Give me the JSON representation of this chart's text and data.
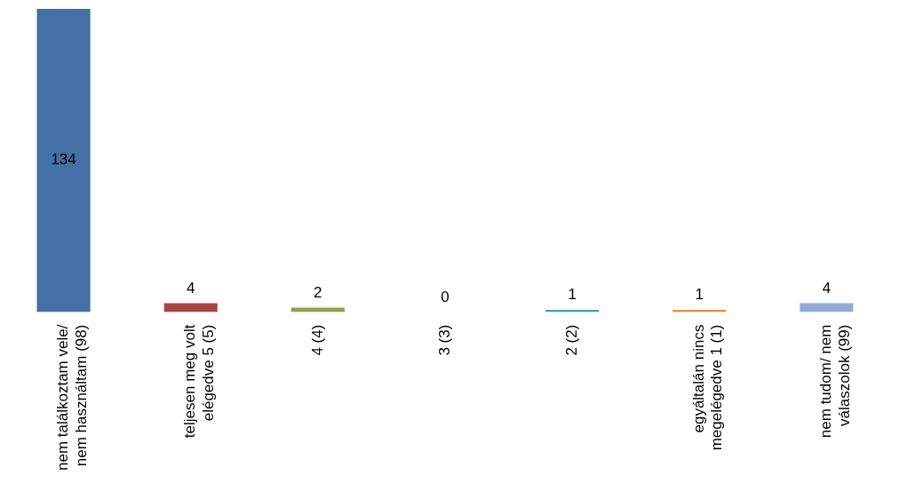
{
  "chart_data": {
    "type": "bar",
    "categories": [
      "nem találkoztam vele/ nem használtam (98)",
      "teljesen meg volt elégedve 5 (5)",
      "4 (4)",
      "3 (3)",
      "2 (2)",
      "egyáltalán nincs megelégedve 1 (1)",
      "nem tudom/ nem válaszolok (99)"
    ],
    "values": [
      134,
      4,
      2,
      0,
      1,
      1,
      4
    ],
    "colors": [
      "#4470a6",
      "#a94543",
      "#87a54b",
      "#7d60a0",
      "#3ba0bd",
      "#f08a2c",
      "#93aad6"
    ],
    "ylim": [
      0,
      134
    ],
    "data_labels": true,
    "tick_labels": "x",
    "grid": false,
    "legend": false
  }
}
